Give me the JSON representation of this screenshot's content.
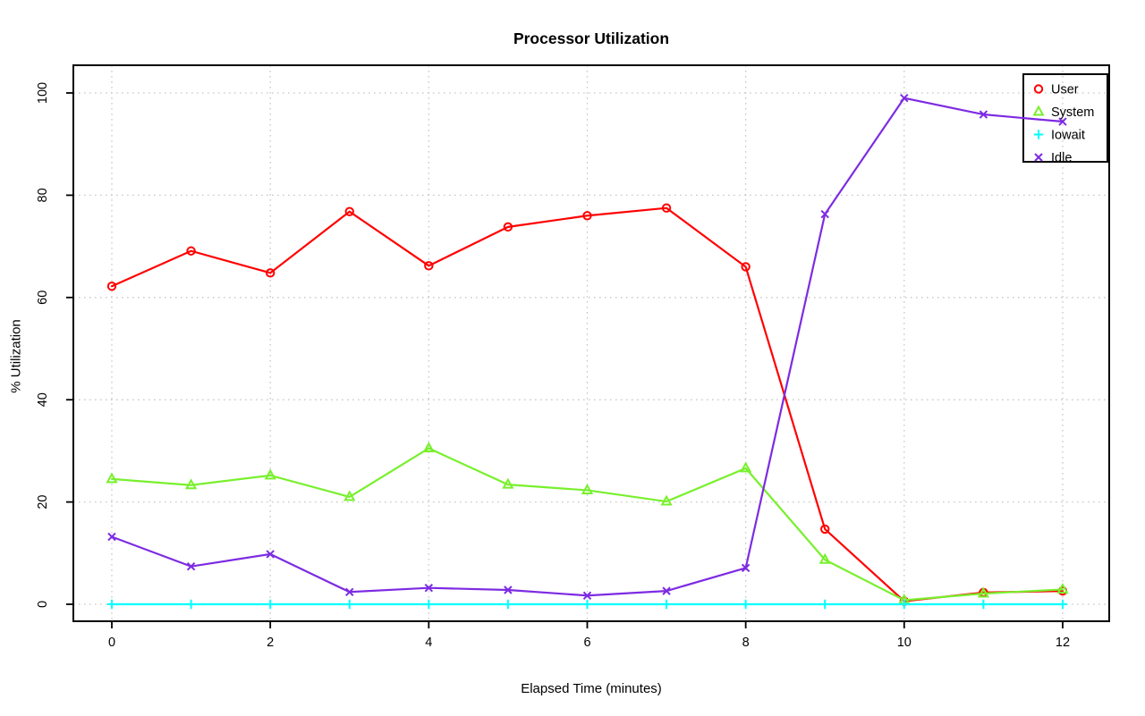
{
  "chart_data": {
    "type": "line",
    "title": "Processor Utilization",
    "xlabel": "Elapsed Time (minutes)",
    "ylabel": "% Utilization",
    "x": [
      0,
      1,
      2,
      3,
      4,
      5,
      6,
      7,
      8,
      9,
      10,
      11,
      12
    ],
    "series": [
      {
        "name": "User",
        "color": "#ff0000",
        "marker": "circle",
        "values": [
          62.2,
          69.1,
          64.8,
          76.8,
          66.2,
          73.8,
          76.0,
          77.5,
          66.0,
          14.7,
          0.6,
          2.3,
          2.6
        ]
      },
      {
        "name": "System",
        "color": "#78f02d",
        "marker": "triangle",
        "values": [
          24.5,
          23.3,
          25.2,
          21.0,
          30.5,
          23.4,
          22.3,
          20.1,
          26.6,
          8.7,
          0.8,
          2.1,
          2.9
        ]
      },
      {
        "name": "Iowait",
        "color": "#00ffff",
        "marker": "plus",
        "values": [
          0,
          0,
          0,
          0,
          0,
          0,
          0,
          0,
          0,
          0,
          0,
          0,
          0
        ]
      },
      {
        "name": "Idle",
        "color": "#7d2be2",
        "marker": "x",
        "values": [
          13.2,
          7.4,
          9.8,
          2.4,
          3.2,
          2.8,
          1.7,
          2.6,
          7.1,
          76.3,
          99.0,
          95.8,
          94.4
        ]
      }
    ],
    "xticks": [
      0,
      2,
      4,
      6,
      8,
      10,
      12
    ],
    "yticks": [
      0,
      20,
      40,
      60,
      80,
      100
    ],
    "xlim": [
      0,
      12
    ],
    "ylim": [
      0,
      100
    ],
    "grid": true,
    "grid_color": "#c8c8c8",
    "axis_color": "#000000",
    "background_color": "#ffffff",
    "legend": {
      "position": "top-right",
      "entries": [
        "User",
        "System",
        "Iowait",
        "Idle"
      ]
    }
  }
}
